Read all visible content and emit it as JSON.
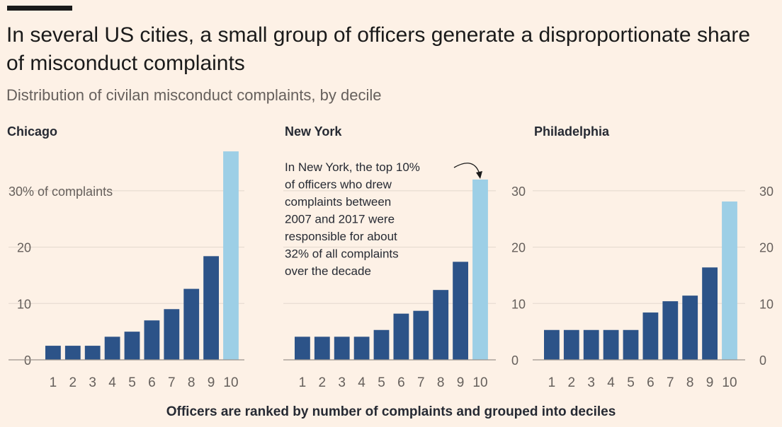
{
  "header": {
    "title": "In several US cities, a small group of officers generate a disproportionate share of misconduct complaints",
    "subtitle": "Distribution of civilan misconduct complaints, by decile"
  },
  "footer": {
    "text": "Officers are ranked by number of complaints and grouped into deciles"
  },
  "colors": {
    "background": "#fdf1e6",
    "bar": "#2c5388",
    "highlight": "#9dcfe6"
  },
  "chart_data": [
    {
      "type": "bar",
      "title": "Chicago",
      "categories": [
        "1",
        "2",
        "3",
        "4",
        "5",
        "6",
        "7",
        "8",
        "9",
        "10"
      ],
      "values": [
        2.5,
        2.5,
        2.5,
        4.1,
        5.0,
        7.0,
        9.0,
        12.6,
        18.4,
        37.0
      ],
      "ylim": [
        0,
        38
      ],
      "yticks": [
        0,
        10,
        20,
        30
      ],
      "ytick_labels": [
        "0",
        "10",
        "20",
        "30% of complaints"
      ],
      "yaxis_side": "left",
      "highlight_category": "10",
      "grid": true
    },
    {
      "type": "bar",
      "title": "New York",
      "categories": [
        "1",
        "2",
        "3",
        "4",
        "5",
        "6",
        "7",
        "8",
        "9",
        "10"
      ],
      "values": [
        4.1,
        4.1,
        4.1,
        4.1,
        5.3,
        8.2,
        8.7,
        12.4,
        17.4,
        32.0
      ],
      "ylim": [
        0,
        38
      ],
      "yticks": [
        0,
        10,
        20,
        30
      ],
      "ytick_labels": [
        "0",
        "10",
        "20",
        "30"
      ],
      "yaxis_side": "right",
      "highlight_category": "10",
      "grid": true,
      "annotation": {
        "lines": [
          "In New York, the top 10%",
          "of officers who drew",
          "complaints between",
          "2007 and 2017 were",
          "responsible for about",
          "32% of all complaints",
          "over the decade"
        ]
      }
    },
    {
      "type": "bar",
      "title": "Philadelphia",
      "categories": [
        "1",
        "2",
        "3",
        "4",
        "5",
        "6",
        "7",
        "8",
        "9",
        "10"
      ],
      "values": [
        5.3,
        5.3,
        5.3,
        5.3,
        5.3,
        8.4,
        10.4,
        11.4,
        16.4,
        28.1
      ],
      "ylim": [
        0,
        38
      ],
      "yticks": [
        0,
        10,
        20,
        30
      ],
      "ytick_labels": [
        "0",
        "10",
        "20",
        "30"
      ],
      "yaxis_side": "right",
      "highlight_category": "10",
      "grid": true
    }
  ]
}
